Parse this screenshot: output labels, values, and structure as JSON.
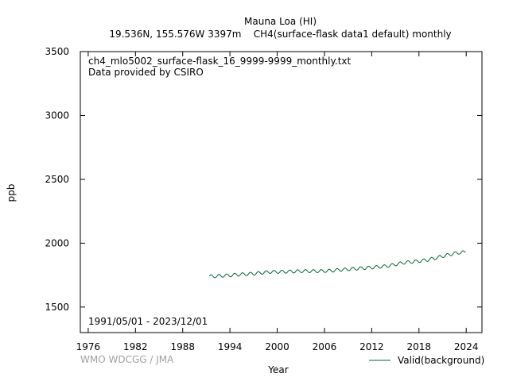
{
  "title": "Mauna Loa (HI)",
  "subtitle": "19.536N, 155.576W 3397m    CH4(surface-flask data1 default) monthly",
  "credit": "WMO WDCGG / JMA",
  "colors": {
    "series": "#006633",
    "frame": "#000000",
    "credit": "#a0a0a0"
  },
  "chart_data": {
    "type": "line",
    "xlabel": "Year",
    "ylabel": "ppb",
    "xlim": [
      1975,
      2026
    ],
    "ylim": [
      1300,
      3500
    ],
    "xticks": [
      "1976",
      "1982",
      "1988",
      "1994",
      "2000",
      "2006",
      "2012",
      "2018",
      "2024"
    ],
    "yticks": [
      "1500",
      "2000",
      "2500",
      "3000",
      "3500"
    ],
    "annotations": [
      "ch4_mlo5002_surface-flask_16_9999-9999_monthly.txt",
      "Data provided by CSIRO",
      "1991/05/01 - 2023/12/01"
    ],
    "grid": false,
    "legend_position": "bottom-right",
    "series": [
      {
        "name": "Valid(background)",
        "x": [
          1991.4,
          1992.0,
          1993.0,
          1994.0,
          1995.0,
          1996.0,
          1997.0,
          1998.0,
          1999.0,
          2000.0,
          2001.0,
          2002.0,
          2003.0,
          2004.0,
          2005.0,
          2006.0,
          2007.0,
          2008.0,
          2009.0,
          2010.0,
          2011.0,
          2012.0,
          2013.0,
          2014.0,
          2015.0,
          2016.0,
          2017.0,
          2018.0,
          2019.0,
          2020.0,
          2021.0,
          2022.0,
          2023.0,
          2023.9
        ],
        "y": [
          1740,
          1740,
          1745,
          1748,
          1755,
          1757,
          1762,
          1768,
          1775,
          1775,
          1777,
          1778,
          1781,
          1781,
          1781,
          1782,
          1785,
          1792,
          1796,
          1800,
          1805,
          1810,
          1815,
          1822,
          1833,
          1847,
          1853,
          1860,
          1868,
          1882,
          1898,
          1913,
          1925,
          1930
        ],
        "seasonal_amplitude": 12
      }
    ]
  }
}
